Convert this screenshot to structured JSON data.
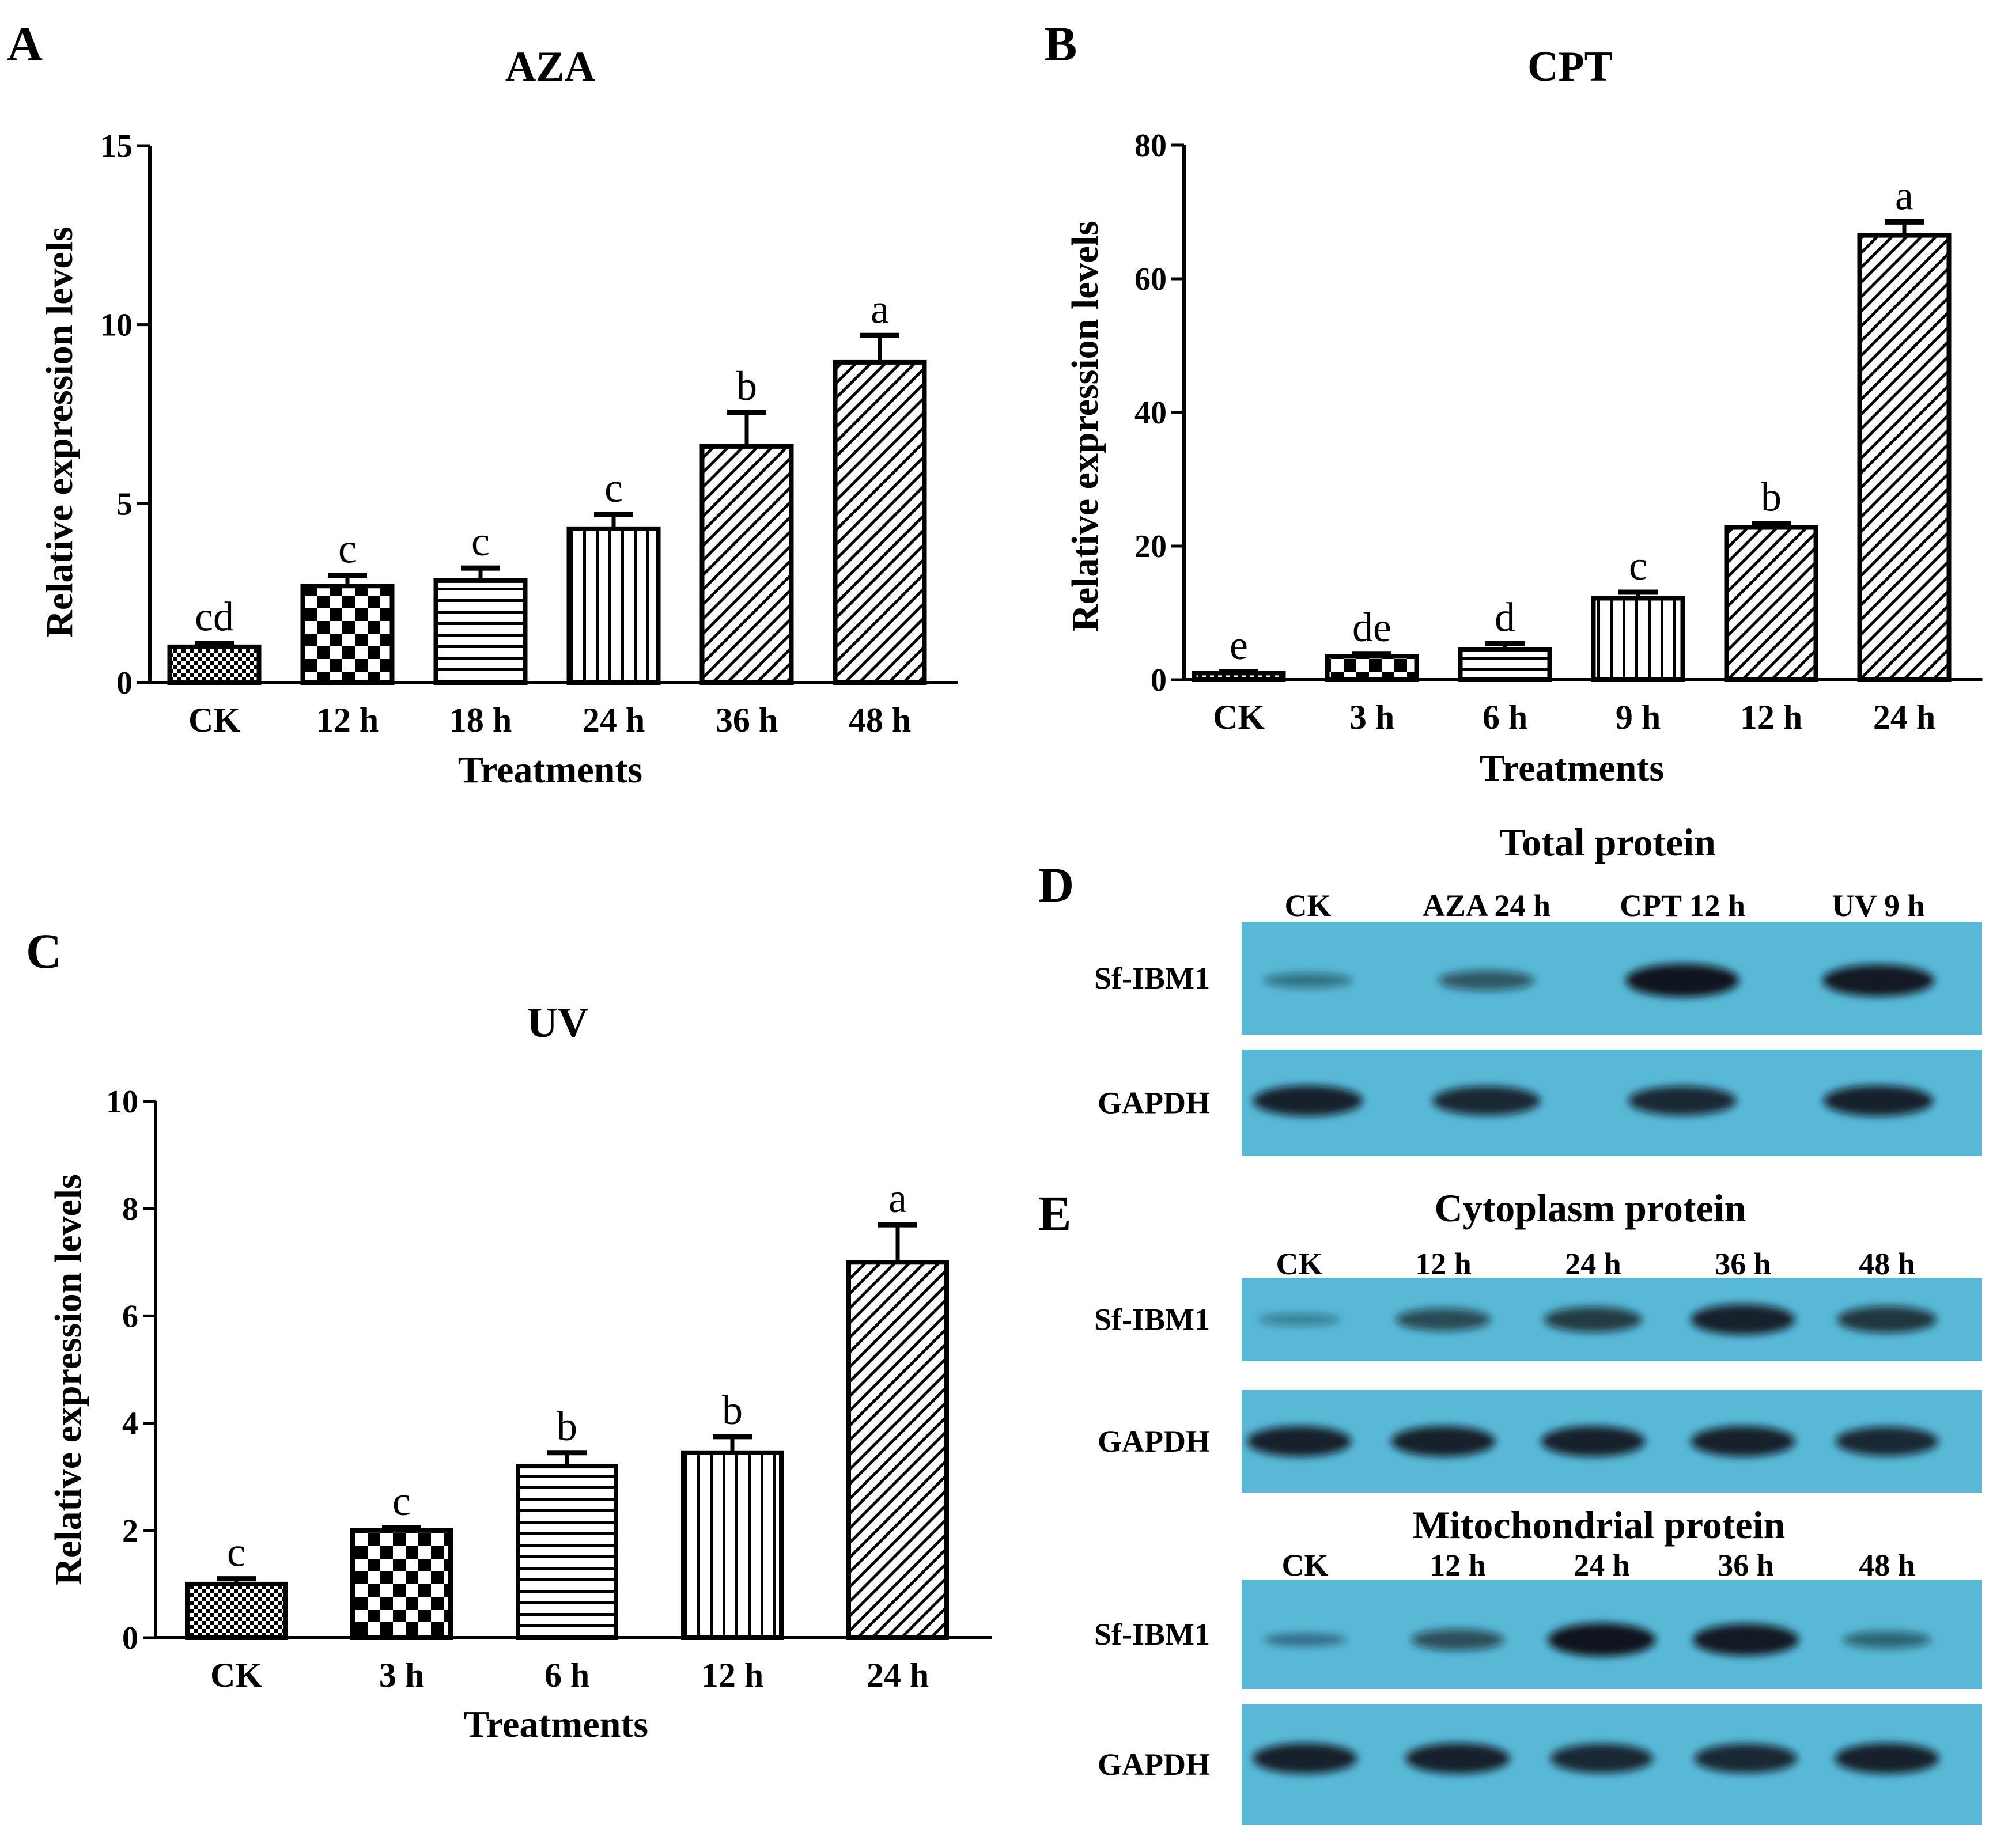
{
  "chart_data": [
    {
      "panel": "A",
      "type": "bar",
      "title": "AZA",
      "xlabel": "Treatments",
      "ylabel": "Relative expression levels",
      "ylim": [
        0,
        15
      ],
      "yticks": [
        0,
        5,
        10,
        15
      ],
      "categories": [
        "CK",
        "12 h",
        "18 h",
        "24 h",
        "36 h",
        "48 h"
      ],
      "values": [
        1.0,
        2.7,
        2.85,
        4.3,
        6.6,
        8.95
      ],
      "errors": [
        0.1,
        0.3,
        0.35,
        0.4,
        0.95,
        0.75
      ],
      "significance": [
        "cd",
        "c",
        "c",
        "c",
        "b",
        "a"
      ],
      "patterns": [
        "dots",
        "checker",
        "hlines",
        "vlines",
        "diag",
        "diag"
      ]
    },
    {
      "panel": "B",
      "type": "bar",
      "title": "CPT",
      "xlabel": "Treatments",
      "ylabel": "Relative expression levels",
      "ylim": [
        0,
        80
      ],
      "yticks": [
        0,
        20,
        40,
        60,
        80
      ],
      "categories": [
        "CK",
        "3 h",
        "6 h",
        "9 h",
        "12 h",
        "24 h"
      ],
      "values": [
        1.0,
        3.5,
        4.5,
        12.2,
        22.8,
        66.5
      ],
      "errors": [
        0.2,
        0.4,
        0.9,
        0.9,
        0.6,
        2.0
      ],
      "significance": [
        "e",
        "de",
        "d",
        "c",
        "b",
        "a"
      ],
      "patterns": [
        "dots",
        "checker",
        "hlines",
        "vlines",
        "diag",
        "diag"
      ]
    },
    {
      "panel": "C",
      "type": "bar",
      "title": "UV",
      "xlabel": "Treatments",
      "ylabel": "Relative expression levels",
      "ylim": [
        0,
        10
      ],
      "yticks": [
        0,
        2,
        4,
        6,
        8,
        10
      ],
      "categories": [
        "CK",
        "3 h",
        "6 h",
        "12 h",
        "24 h"
      ],
      "values": [
        1.0,
        2.0,
        3.2,
        3.45,
        7.0
      ],
      "errors": [
        0.1,
        0.05,
        0.25,
        0.3,
        0.7
      ],
      "significance": [
        "c",
        "c",
        "b",
        "b",
        "a"
      ],
      "patterns": [
        "dots",
        "checker",
        "hlines",
        "vlines",
        "diag"
      ]
    }
  ],
  "western_blots": {
    "D": {
      "letter": "D",
      "title": "Total protein",
      "lanes": [
        "CK",
        "AZA 24 h",
        "CPT 12 h",
        "UV 9 h"
      ],
      "rows": [
        {
          "label": "Sf-IBM1",
          "band_intensity": [
            0.25,
            0.45,
            0.95,
            0.9
          ]
        },
        {
          "label": "GAPDH",
          "band_intensity": [
            0.85,
            0.8,
            0.8,
            0.85
          ]
        }
      ]
    },
    "E": {
      "letter": "E",
      "cytoplasm": {
        "title": "Cytoplasm protein",
        "lanes": [
          "CK",
          "12 h",
          "24 h",
          "36 h",
          "48 h"
        ],
        "rows": [
          {
            "label": "Sf-IBM1",
            "band_intensity": [
              0.15,
              0.55,
              0.65,
              0.85,
              0.7
            ]
          },
          {
            "label": "GAPDH",
            "band_intensity": [
              0.85,
              0.85,
              0.85,
              0.85,
              0.8
            ]
          }
        ]
      },
      "mitochondrial": {
        "title": "Mitochondrial protein",
        "lanes": [
          "CK",
          "12 h",
          "24 h",
          "36 h",
          "48 h"
        ],
        "rows": [
          {
            "label": "Sf-IBM1",
            "band_intensity": [
              0.2,
              0.5,
              0.95,
              0.9,
              0.35
            ]
          },
          {
            "label": "GAPDH",
            "band_intensity": [
              0.85,
              0.85,
              0.8,
              0.8,
              0.85
            ]
          }
        ]
      }
    }
  },
  "colors": {
    "blot_background": "#58b8d6",
    "band": "#0c1014",
    "bar_stroke": "#000000"
  }
}
